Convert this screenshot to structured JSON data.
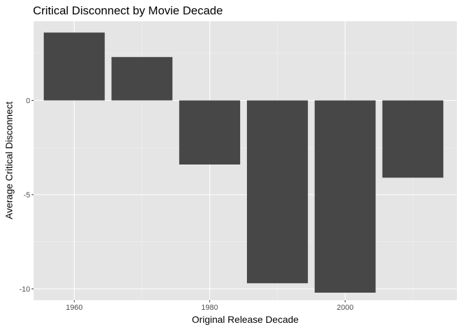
{
  "chart_data": {
    "type": "bar",
    "title": "Critical Disconnect by Movie Decade",
    "xlabel": "Original Release Decade",
    "ylabel": "Average Critical Disconnect",
    "x": [
      1960,
      1970,
      1980,
      1990,
      2000,
      2010
    ],
    "values": [
      3.6,
      2.3,
      -3.4,
      -9.7,
      -10.2,
      -4.1
    ],
    "xlim": [
      1954,
      2016.5
    ],
    "ylim": [
      -10.6,
      4.2
    ],
    "x_ticks": [
      1960,
      1980,
      2000
    ],
    "y_ticks": [
      0,
      -5,
      -10
    ],
    "y_tick_labels": [
      "0",
      "-5",
      "-10"
    ],
    "grid": true,
    "colors": {
      "panel": "#e5e5e5",
      "grid_major": "#ffffff",
      "bar": "#474747"
    }
  }
}
